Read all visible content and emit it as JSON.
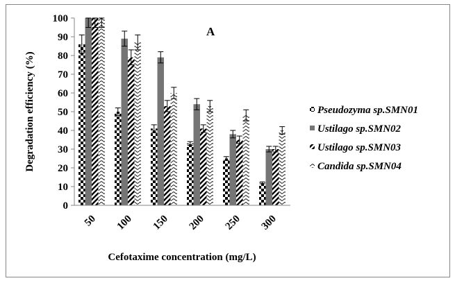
{
  "chart_data": {
    "type": "bar",
    "title": "",
    "panel_label": "A",
    "xlabel": "Cefotaxime concentration (mg/L)",
    "ylabel": "Degradation efficiency (%)",
    "ylim": [
      0,
      100
    ],
    "yticks": [
      0,
      10,
      20,
      30,
      40,
      50,
      60,
      70,
      80,
      90,
      100
    ],
    "categories": [
      "50",
      "100",
      "150",
      "200",
      "250",
      "300"
    ],
    "legend_position": "right",
    "grid": false,
    "series": [
      {
        "name": "Pseudozyma sp.SMN01",
        "pattern": "checkerboard",
        "color": "#000000",
        "values": [
          86,
          50,
          41,
          33,
          25,
          12
        ],
        "errors": [
          5,
          2,
          2,
          1,
          1,
          0.5
        ]
      },
      {
        "name": "Ustilago sp.SMN02",
        "pattern": "solid",
        "color": "#757575",
        "values": [
          100,
          89,
          79,
          54,
          38,
          30
        ],
        "errors": [
          5,
          4,
          3,
          3,
          2,
          1.5
        ]
      },
      {
        "name": "Ustilago sp.SMN03",
        "pattern": "diagonal",
        "color": "#000000",
        "values": [
          100,
          79,
          53,
          41,
          35,
          30
        ],
        "errors": [
          5,
          4,
          3,
          2,
          2,
          1.5
        ]
      },
      {
        "name": "Candida sp.SMN04",
        "pattern": "wave",
        "color": "#000000",
        "values": [
          100,
          87,
          60,
          53,
          48,
          40
        ],
        "errors": [
          5,
          4,
          3,
          3,
          3,
          2
        ]
      }
    ]
  }
}
